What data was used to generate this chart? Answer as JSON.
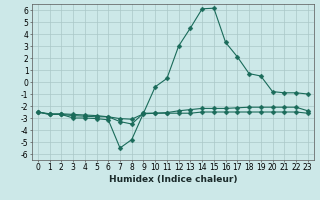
{
  "title": "",
  "xlabel": "Humidex (Indice chaleur)",
  "ylabel": "",
  "xlim": [
    -0.5,
    23.5
  ],
  "ylim": [
    -6.5,
    6.5
  ],
  "xticks": [
    0,
    1,
    2,
    3,
    4,
    5,
    6,
    7,
    8,
    9,
    10,
    11,
    12,
    13,
    14,
    15,
    16,
    17,
    18,
    19,
    20,
    21,
    22,
    23
  ],
  "yticks": [
    -6,
    -5,
    -4,
    -3,
    -2,
    -1,
    0,
    1,
    2,
    3,
    4,
    5,
    6
  ],
  "bg_color": "#cce8e8",
  "line_color": "#1a6b5a",
  "grid_color": "#aac8c8",
  "line_x": [
    0,
    1,
    2,
    3,
    4,
    5,
    6,
    7,
    8,
    9,
    10,
    11,
    12,
    13,
    14,
    15,
    16,
    17,
    18,
    19,
    20,
    21,
    22,
    23
  ],
  "line_top": [
    -2.5,
    -2.7,
    -2.7,
    -2.8,
    -2.85,
    -2.9,
    -2.9,
    -3.3,
    -3.5,
    -2.6,
    -0.4,
    0.3,
    3.0,
    4.5,
    6.1,
    6.15,
    3.3,
    2.1,
    0.7,
    0.5,
    -0.8,
    -0.9,
    -0.9,
    -1.0
  ],
  "line_mid": [
    -2.5,
    -2.65,
    -2.65,
    -2.7,
    -2.75,
    -2.8,
    -2.9,
    -3.05,
    -3.1,
    -2.65,
    -2.6,
    -2.55,
    -2.4,
    -2.3,
    -2.2,
    -2.2,
    -2.2,
    -2.15,
    -2.1,
    -2.1,
    -2.1,
    -2.1,
    -2.1,
    -2.4
  ],
  "line_bot": [
    -2.5,
    -2.7,
    -2.7,
    -3.0,
    -3.0,
    -3.05,
    -3.15,
    -5.5,
    -4.8,
    -2.6,
    -2.6,
    -2.6,
    -2.6,
    -2.6,
    -2.5,
    -2.5,
    -2.5,
    -2.5,
    -2.5,
    -2.5,
    -2.5,
    -2.5,
    -2.5,
    -2.6
  ],
  "marker_size": 2.5,
  "tick_fontsize": 5.5,
  "xlabel_fontsize": 6.5
}
